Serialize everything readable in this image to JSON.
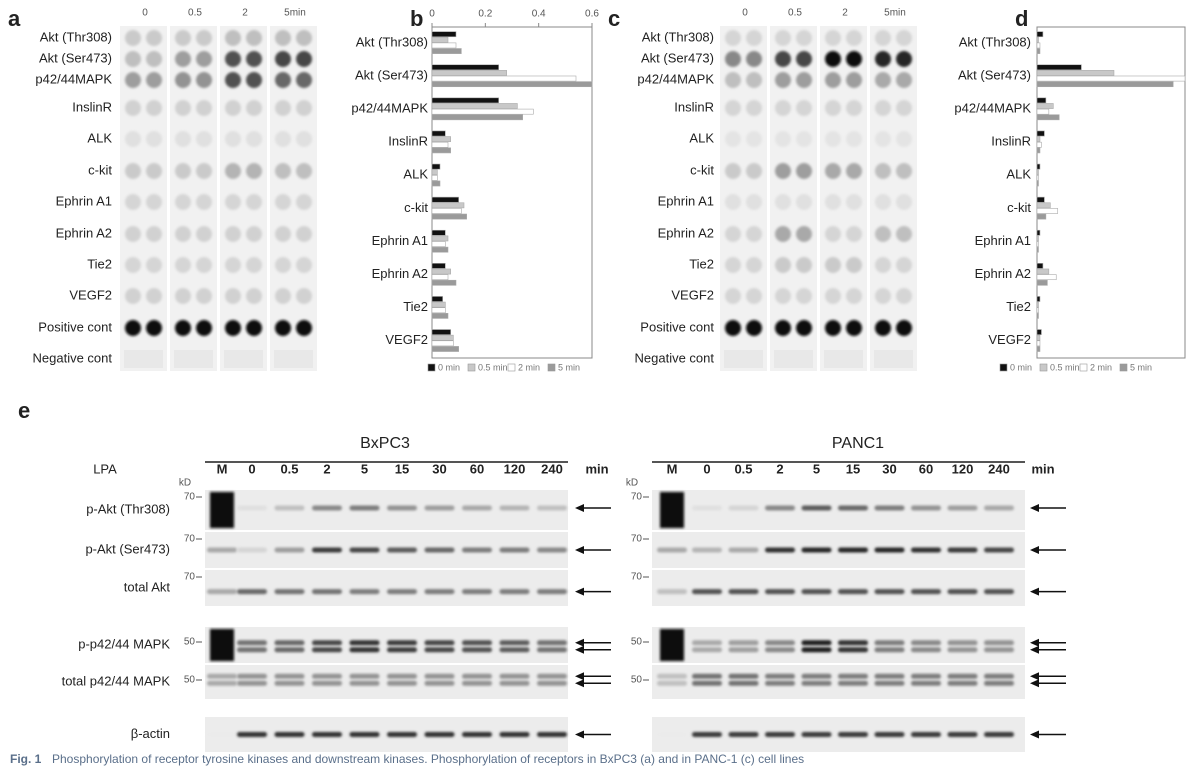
{
  "chart_data": [
    {
      "type": "bar",
      "orientation": "horizontal",
      "panel": "b",
      "categories": [
        "Akt (Thr308)",
        "Akt (Ser473)",
        "p42/44MAPK",
        "InslinR",
        "ALK",
        "c-kit",
        "Ephrin A1",
        "Ephrin A2",
        "Tie2",
        "VEGF2"
      ],
      "series": [
        {
          "name": "0 min",
          "color": "#111111",
          "values": [
            0.09,
            0.25,
            0.25,
            0.05,
            0.03,
            0.1,
            0.05,
            0.05,
            0.04,
            0.07
          ]
        },
        {
          "name": "0.5 min",
          "color": "#c8c8c8",
          "values": [
            0.06,
            0.28,
            0.32,
            0.07,
            0.02,
            0.12,
            0.06,
            0.07,
            0.05,
            0.08
          ]
        },
        {
          "name": "2 min",
          "color": "#ffffff",
          "values": [
            0.09,
            0.54,
            0.38,
            0.06,
            0.02,
            0.11,
            0.05,
            0.06,
            0.05,
            0.08
          ]
        },
        {
          "name": "5 min",
          "color": "#9a9a9a",
          "values": [
            0.11,
            0.6,
            0.34,
            0.07,
            0.03,
            0.13,
            0.06,
            0.09,
            0.06,
            0.1
          ]
        }
      ],
      "xlim": [
        0,
        0.6
      ],
      "xticks": [
        0,
        0.2,
        0.4,
        0.6
      ]
    },
    {
      "type": "bar",
      "orientation": "horizontal",
      "panel": "d",
      "categories": [
        "Akt (Thr308)",
        "Akt (Ser473)",
        "p42/44MAPK",
        "InslinR",
        "ALK",
        "c-kit",
        "Ephrin A1",
        "Ephrin A2",
        "Tie2",
        "VEGF2"
      ],
      "series": [
        {
          "name": "0 min",
          "color": "#111111",
          "values": [
            0.04,
            0.3,
            0.06,
            0.05,
            0.02,
            0.05,
            0.02,
            0.04,
            0.02,
            0.03
          ]
        },
        {
          "name": "0.5 min",
          "color": "#c8c8c8",
          "values": [
            0.01,
            0.52,
            0.11,
            0.02,
            0.01,
            0.09,
            0.01,
            0.08,
            0.01,
            0.02
          ]
        },
        {
          "name": "2 min",
          "color": "#ffffff",
          "values": [
            0.02,
            1.0,
            0.08,
            0.03,
            0.01,
            0.14,
            0.01,
            0.13,
            0.01,
            0.02
          ]
        },
        {
          "name": "5 min",
          "color": "#9a9a9a",
          "values": [
            0.02,
            0.92,
            0.15,
            0.02,
            0.01,
            0.06,
            0.01,
            0.07,
            0.01,
            0.02
          ]
        }
      ],
      "xlim": [
        0,
        1
      ]
    }
  ],
  "panels": {
    "a": {
      "letter": "a",
      "columns": [
        "0",
        "0.5",
        "2",
        "5min"
      ],
      "rows": [
        "Akt (Thr308)",
        "Akt (Ser473)",
        "p42/44MAPK",
        "InslinR",
        "ALK",
        "c-kit",
        "Ephrin A1",
        "Ephrin A2",
        "Tie2",
        "VEGF2",
        "Positive cont",
        "Negative cont"
      ]
    },
    "c": {
      "letter": "c",
      "columns": [
        "0",
        "0.5",
        "2",
        "5min"
      ],
      "rows": [
        "Akt (Thr308)",
        "Akt (Ser473)",
        "p42/44MAPK",
        "InslinR",
        "ALK",
        "c-kit",
        "Ephrin A1",
        "Ephrin A2",
        "Tie2",
        "VEGF2",
        "Positive cont",
        "Negative cont"
      ]
    },
    "e": {
      "letter": "e",
      "treatment": "LPA",
      "unit": "min",
      "kd_label": "kD",
      "marker_lane": "M",
      "rows": [
        "p-Akt (Thr308)",
        "p-Akt (Ser473)",
        "total Akt",
        "p-p42/44 MAPK",
        "total p42/44 MAPK",
        "β-actin"
      ],
      "cell_lines": [
        {
          "name": "BxPC3",
          "times": [
            "0",
            "0.5",
            "2",
            "5",
            "15",
            "30",
            "60",
            "120",
            "240"
          ],
          "markers": [
            "70",
            "70",
            "70",
            "50",
            "50",
            null
          ]
        },
        {
          "name": "PANC1",
          "times": [
            "0",
            "0.5",
            "2",
            "5",
            "15",
            "30",
            "60",
            "120",
            "240"
          ],
          "markers": [
            "70",
            "70",
            "70",
            "50",
            "50",
            null
          ]
        }
      ]
    }
  },
  "caption": {
    "label": "Fig. 1",
    "text": "Phosphorylation of receptor tyrosine kinases and downstream kinases. Phosphorylation of receptors in BxPC3 (a) and in PANC-1 (c) cell lines"
  }
}
